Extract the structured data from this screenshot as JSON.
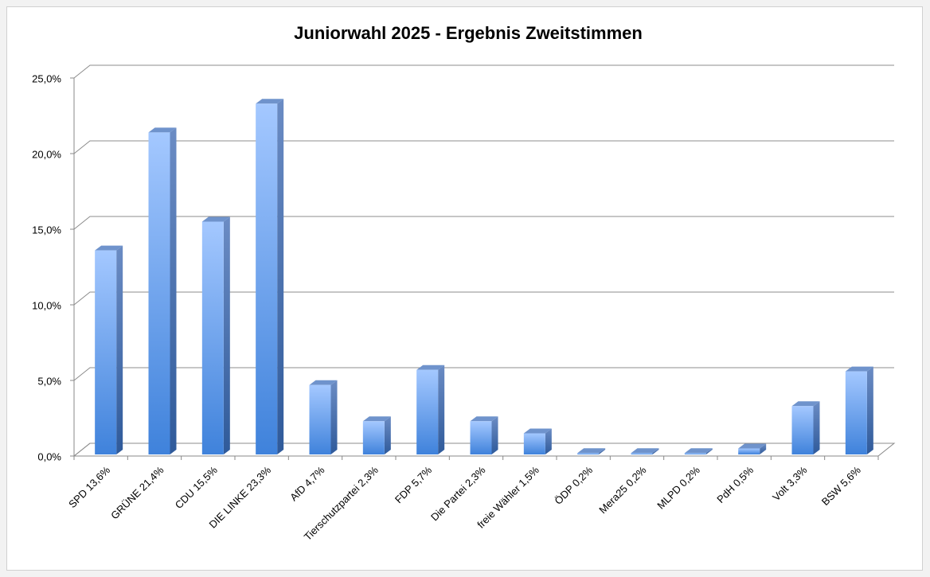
{
  "chart_data": {
    "type": "bar3d",
    "title": "Juniorwahl 2025 - Ergebnis Zweitstimmen",
    "categories": [
      "SPD 13,6%",
      "GRÜNE 21,4%",
      "CDU 15,5%",
      "DIE LINKE 23,3%",
      "AfD 4,7%",
      "Tierschutzpartei 2,3%",
      "FDP 5,7%",
      "Die Partei 2,3%",
      "freie Wähler 1,5%",
      "ÖDP 0,2%",
      "Mera25 0,2%",
      "MLPD 0,2%",
      "PdH 0,5%",
      "Volt 3,3%",
      "BSW 5,6%"
    ],
    "values": [
      13.6,
      21.4,
      15.5,
      23.3,
      4.7,
      2.3,
      5.7,
      2.3,
      1.5,
      0.2,
      0.2,
      0.2,
      0.5,
      3.3,
      5.6
    ],
    "color": "#5b9bea",
    "ylim": [
      0,
      25
    ],
    "yticks": [
      {
        "value": 0,
        "label": "0,0%"
      },
      {
        "value": 5,
        "label": "5,0%"
      },
      {
        "value": 10,
        "label": "10,0%"
      },
      {
        "value": 15,
        "label": "15,0%"
      },
      {
        "value": 20,
        "label": "20,0%"
      },
      {
        "value": 25,
        "label": "25,0%"
      }
    ],
    "grid": true
  }
}
